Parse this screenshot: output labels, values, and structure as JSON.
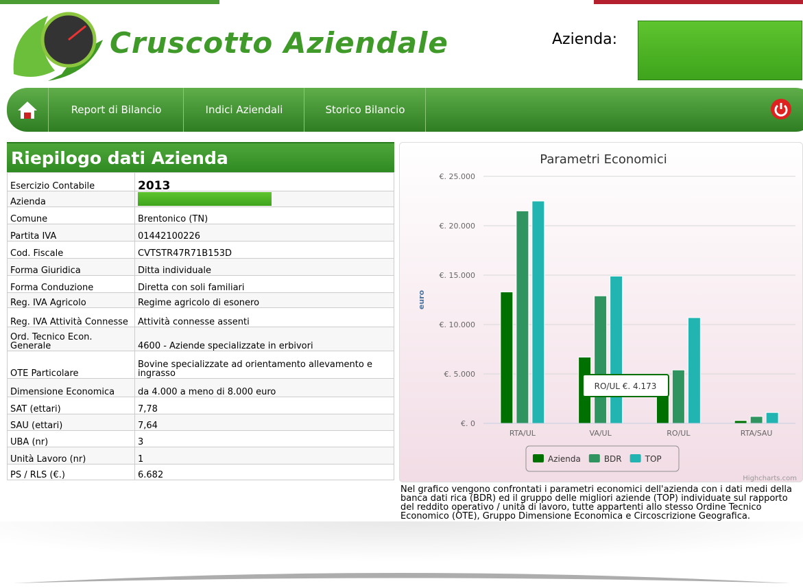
{
  "header": {
    "title": "Cruscotto Aziendale",
    "company_label": "Azienda:"
  },
  "nav": [
    "Report di Bilancio",
    "Indici Aziendali",
    "Storico Bilancio"
  ],
  "panel": {
    "title": "Riepilogo dati Azienda",
    "rows": [
      [
        "Esercizio Contabile",
        "2013"
      ],
      [
        "Azienda"
      ],
      [
        "Comune",
        "Brentonico (TN)"
      ],
      [
        "Partita IVA",
        "01442100226"
      ],
      [
        "Cod. Fiscale",
        "CVTSTR47R71B153D"
      ],
      [
        "Forma Giuridica",
        "Ditta individuale"
      ],
      [
        "Forma Conduzione",
        "Diretta con soli familiari"
      ],
      [
        "Reg. IVA Agricolo",
        "Regime agricolo di esonero"
      ],
      [
        "Reg. IVA Attività Connesse",
        "Attività connesse assenti"
      ],
      [
        "Ord. Tecnico Econ. Generale",
        "4600 - Aziende specializzate in erbivori"
      ],
      [
        "OTE Particolare",
        "Bovine specializzate ad orientamento allevamento e ingrasso"
      ],
      [
        "Dimensione Economica",
        "da 4.000 a meno di 8.000 euro"
      ],
      [
        "SAT (ettari)",
        "7,78"
      ],
      [
        "SAU (ettari)",
        "7,64"
      ],
      [
        "UBA (nr)",
        "3"
      ],
      [
        "Unità Lavoro (nr)",
        "1"
      ],
      [
        "PS / RLS (€.)",
        "6.682"
      ]
    ]
  },
  "chart_data": {
    "type": "bar",
    "title": "Parametri Economici",
    "y_label": "euro",
    "categories": [
      "RTA/UL",
      "VA/UL",
      "RO/UL",
      "RTA/SAU"
    ],
    "series": [
      {
        "name": "Azienda",
        "color": "#007000",
        "values": [
          13300,
          6700,
          4173,
          280
        ]
      },
      {
        "name": "BDR",
        "color": "#2f9460",
        "values": [
          21500,
          12900,
          5400,
          700
        ]
      },
      {
        "name": "TOP",
        "color": "#22b4b0",
        "values": [
          22500,
          14900,
          10700,
          1100
        ]
      }
    ],
    "ylim": [
      0,
      25000
    ],
    "yticks": [
      {
        "value": 0,
        "label": "€. 0"
      },
      {
        "value": 5000,
        "label": "€. 5.000"
      },
      {
        "value": 10000,
        "label": "€. 10.000"
      },
      {
        "value": 15000,
        "label": "€. 15.000"
      },
      {
        "value": 20000,
        "label": "€. 20.000"
      },
      {
        "value": 25000,
        "label": "€. 25.000"
      }
    ],
    "grid": true,
    "legend": "bottom",
    "tooltip": "RO/UL €. 4.173",
    "credits": "Highcharts.com"
  },
  "description": "Nel grafico vengono confrontati i parametri economici dell'azienda con i dati medi della banca dati rica (BDR) ed il gruppo delle migliori aziende (TOP) individuate sul rapporto del reddito operativo / unità di lavoro, tutte appartenti allo stesso Ordine Tecnico Economico (OTE), Gruppo Dimensione Economica e Circoscrizione Geografica."
}
